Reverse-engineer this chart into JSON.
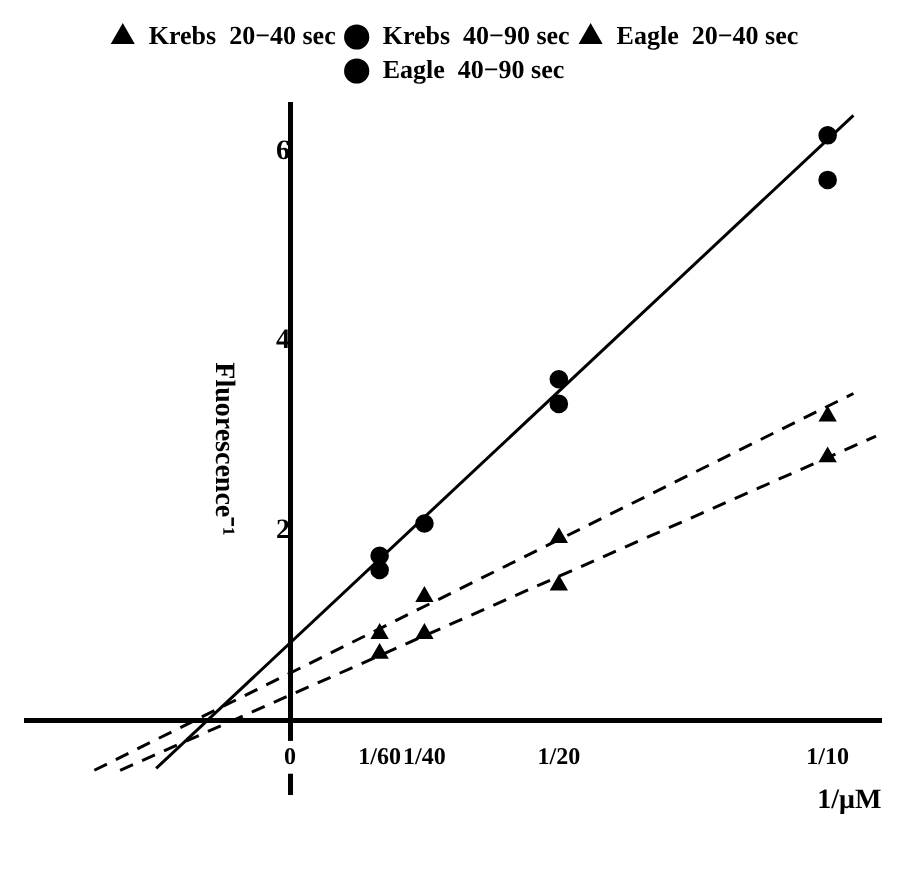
{
  "chart_data": {
    "type": "scatter",
    "ylabel": "Fluorescence⁻¹",
    "xlabel": "1/μM",
    "xlim": [
      -0.049,
      0.11
    ],
    "ylim": [
      -0.77,
      6.5
    ],
    "xticks": [
      {
        "value": 0,
        "label": "0"
      },
      {
        "value": 0.016667,
        "label": "1/60"
      },
      {
        "value": 0.025,
        "label": "1/40"
      },
      {
        "value": 0.05,
        "label": "1/20"
      },
      {
        "value": 0.1,
        "label": "1/10"
      }
    ],
    "yticks": [
      2,
      4,
      6
    ],
    "grid": false,
    "legend": "top",
    "series": [
      {
        "name": "Krebs  20−40 sec",
        "color": "#000000",
        "marker": "triangle",
        "x": [
          0.016667,
          0.025,
          0.05,
          0.1
        ],
        "values": [
          0.71,
          0.92,
          1.43,
          2.78
        ]
      },
      {
        "name": "Krebs  40−90 sec",
        "color": "#000000",
        "marker": "circle",
        "x": [
          0.016667,
          0.025,
          0.05,
          0.1
        ],
        "values": [
          1.74,
          2.08,
          3.34,
          6.17
        ]
      },
      {
        "name": "Eagle  20−40 sec",
        "color": "#000000",
        "marker": "triangle",
        "x": [
          0.016667,
          0.025,
          0.05,
          0.1
        ],
        "values": [
          0.92,
          1.31,
          1.93,
          3.21
        ]
      },
      {
        "name": "Eagle  40−90 sec",
        "color": "#000000",
        "marker": "circle",
        "x": [
          0.016667,
          0.05,
          0.1
        ],
        "values": [
          1.59,
          3.6,
          5.7
        ]
      },
      {
        "type": "line",
        "color": "#000000",
        "line_style": "solid",
        "x": [
          -0.0249,
          0.1048
        ],
        "values": [
          -0.5,
          6.38
        ]
      },
      {
        "type": "line",
        "color": "#000000",
        "line_style": "dashed",
        "x": [
          -0.0364,
          0.1048
        ],
        "values": [
          -0.52,
          3.45
        ]
      },
      {
        "type": "line",
        "color": "#000000",
        "line_style": "dashed",
        "x": [
          -0.0316,
          0.109
        ],
        "values": [
          -0.52,
          3.0
        ]
      }
    ]
  }
}
